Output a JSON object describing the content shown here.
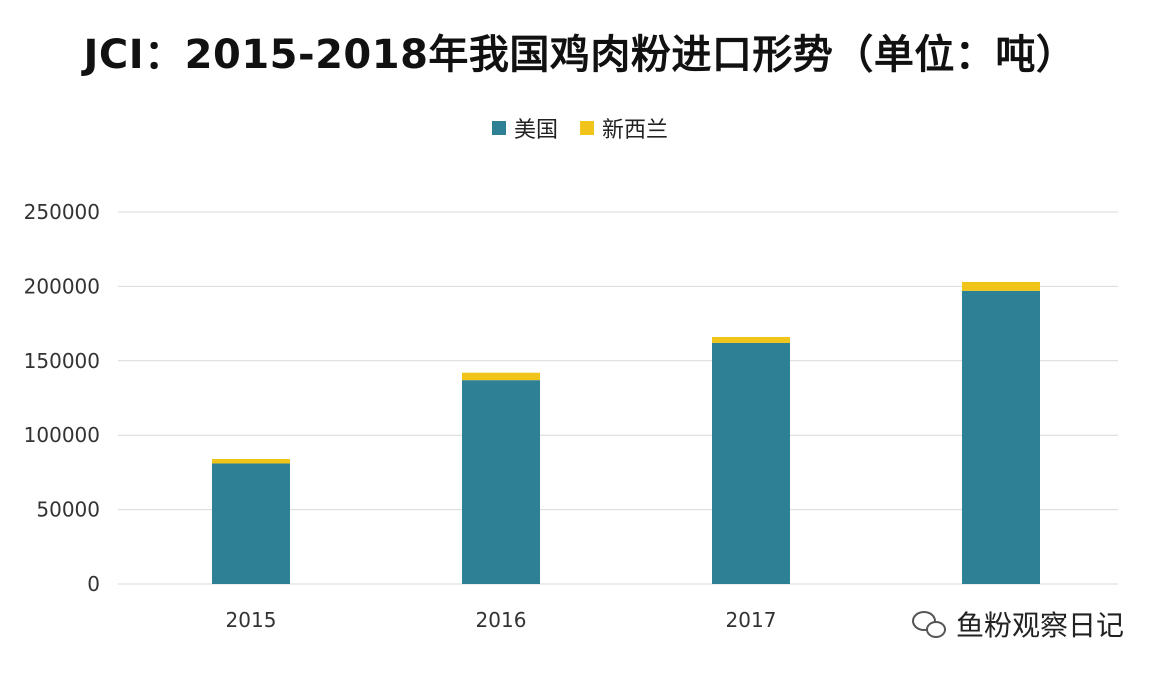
{
  "chart_data": {
    "type": "bar",
    "stacked": true,
    "title": "JCI：2015-2018年我国鸡肉粉进口形势（单位：吨）",
    "categories": [
      "2015",
      "2016",
      "2017",
      ""
    ],
    "series": [
      {
        "name": "美国",
        "color": "#2e8194",
        "values": [
          81000,
          137000,
          162000,
          197000
        ]
      },
      {
        "name": "新西兰",
        "color": "#f0c419",
        "values": [
          3000,
          5000,
          4000,
          6000
        ]
      }
    ],
    "ylim": [
      0,
      250000
    ],
    "yticks": [
      0,
      50000,
      100000,
      150000,
      200000,
      250000
    ],
    "ytick_labels": [
      "0",
      "50000",
      "100000",
      "150000",
      "200000",
      "250000"
    ],
    "grid": true,
    "legend_position": "top"
  },
  "watermark": {
    "text": "鱼粉观察日记",
    "icon": "wechat-icon"
  }
}
